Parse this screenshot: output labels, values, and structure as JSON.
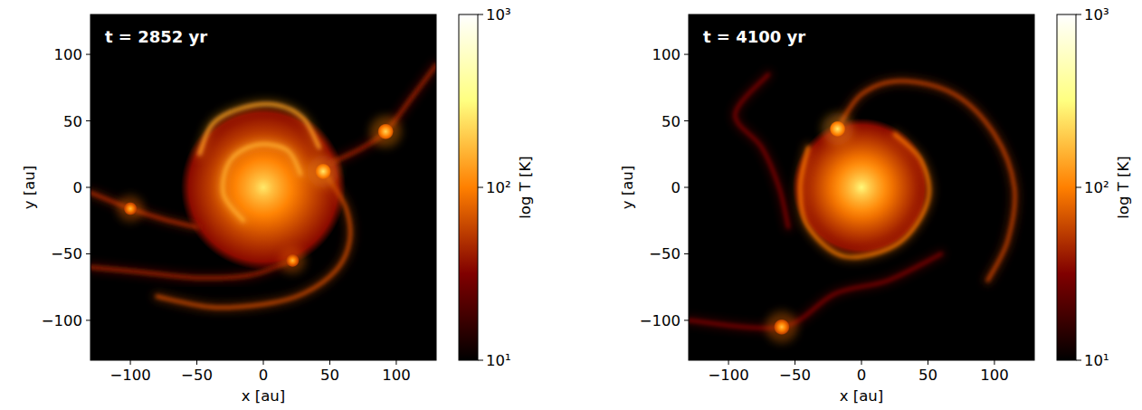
{
  "chart_data": [
    {
      "type": "temperature_map",
      "annotation": "t = 2852 yr",
      "x_label": "x [au]",
      "y_label": "y [au]",
      "xlim": [
        -130,
        130
      ],
      "ylim": [
        -130,
        130
      ],
      "xticks": [
        {
          "value": -100,
          "label": "−100"
        },
        {
          "value": -50,
          "label": "−50"
        },
        0,
        50,
        100
      ],
      "yticks": [
        {
          "value": -100,
          "label": "−100"
        },
        {
          "value": -50,
          "label": "−50"
        },
        0,
        50,
        100
      ],
      "colorbar": {
        "label": "log T [K]",
        "range": [
          10,
          1000
        ],
        "log": true,
        "ticks": [
          {
            "value": 10,
            "label": "10¹"
          },
          {
            "value": 100,
            "label": "10²"
          },
          {
            "value": 1000,
            "label": "10³"
          }
        ]
      },
      "disk": {
        "x": 0,
        "y": 0,
        "radius": 62,
        "peak_temperature": 260,
        "edge_temperature": 35
      },
      "clumps": [
        {
          "x": 45,
          "y": 12,
          "radius": 6,
          "temperature": 260
        },
        {
          "x": 92,
          "y": 42,
          "radius": 6,
          "temperature": 220
        },
        {
          "x": -100,
          "y": -16,
          "radius": 5,
          "temperature": 170
        },
        {
          "x": 22,
          "y": -55,
          "radius": 5,
          "temperature": 170
        }
      ],
      "arms": [
        {
          "temperature": 130,
          "x": [
            -48,
            -38,
            -15,
            10,
            30,
            42
          ],
          "y": [
            25,
            48,
            60,
            62,
            52,
            30
          ]
        },
        {
          "temperature": 60,
          "x": [
            48,
            62,
            65,
            55,
            30,
            0,
            -40,
            -80
          ],
          "y": [
            8,
            -15,
            -40,
            -62,
            -80,
            -88,
            -90,
            -82
          ]
        },
        {
          "temperature": 45,
          "x": [
            -130,
            -100,
            -75,
            -50
          ],
          "y": [
            -4,
            -16,
            -24,
            -30
          ]
        },
        {
          "temperature": 40,
          "x": [
            22,
            -10,
            -50,
            -90,
            -130
          ],
          "y": [
            -55,
            -66,
            -68,
            -64,
            -60
          ]
        },
        {
          "temperature": 40,
          "x": [
            50,
            75,
            92,
            112,
            130
          ],
          "y": [
            18,
            30,
            42,
            68,
            92
          ]
        },
        {
          "temperature": 150,
          "x": [
            -15,
            -30,
            -25,
            -5,
            18,
            28
          ],
          "y": [
            -25,
            -5,
            20,
            32,
            28,
            10
          ]
        }
      ]
    },
    {
      "type": "temperature_map",
      "annotation": "t = 4100 yr",
      "x_label": "x [au]",
      "y_label": "y [au]",
      "xlim": [
        -130,
        130
      ],
      "ylim": [
        -130,
        130
      ],
      "xticks": [
        {
          "value": -100,
          "label": "−100"
        },
        {
          "value": -50,
          "label": "−50"
        },
        0,
        50,
        100
      ],
      "yticks": [
        {
          "value": -100,
          "label": "−100"
        },
        {
          "value": -50,
          "label": "−50"
        },
        0,
        50,
        100
      ],
      "colorbar": {
        "label": "log T [K]",
        "range": [
          10,
          1000
        ],
        "log": true,
        "ticks": [
          {
            "value": 10,
            "label": "10¹"
          },
          {
            "value": 100,
            "label": "10²"
          },
          {
            "value": 1000,
            "label": "10³"
          }
        ]
      },
      "disk": {
        "x": 0,
        "y": 0,
        "radius": 52,
        "peak_temperature": 300,
        "edge_temperature": 35
      },
      "clumps": [
        {
          "x": -18,
          "y": 44,
          "radius": 6,
          "temperature": 260
        },
        {
          "x": -60,
          "y": -105,
          "radius": 6,
          "temperature": 180
        }
      ],
      "arms": [
        {
          "temperature": 55,
          "x": [
            -18,
            0,
            30,
            70,
            100,
            115,
            110,
            95
          ],
          "y": [
            44,
            70,
            80,
            70,
            40,
            0,
            -40,
            -70
          ]
        },
        {
          "temperature": 90,
          "x": [
            -40,
            -46,
            -40,
            -12,
            28,
            50,
            45,
            25
          ],
          "y": [
            30,
            0,
            -30,
            -52,
            -42,
            -10,
            20,
            40
          ]
        },
        {
          "temperature": 30,
          "x": [
            -70,
            -95,
            -75,
            -62,
            -55
          ],
          "y": [
            85,
            55,
            30,
            0,
            -30
          ]
        },
        {
          "temperature": 30,
          "x": [
            -130,
            -60,
            -20,
            20,
            60
          ],
          "y": [
            -100,
            -105,
            -80,
            -70,
            -50
          ]
        }
      ]
    }
  ]
}
